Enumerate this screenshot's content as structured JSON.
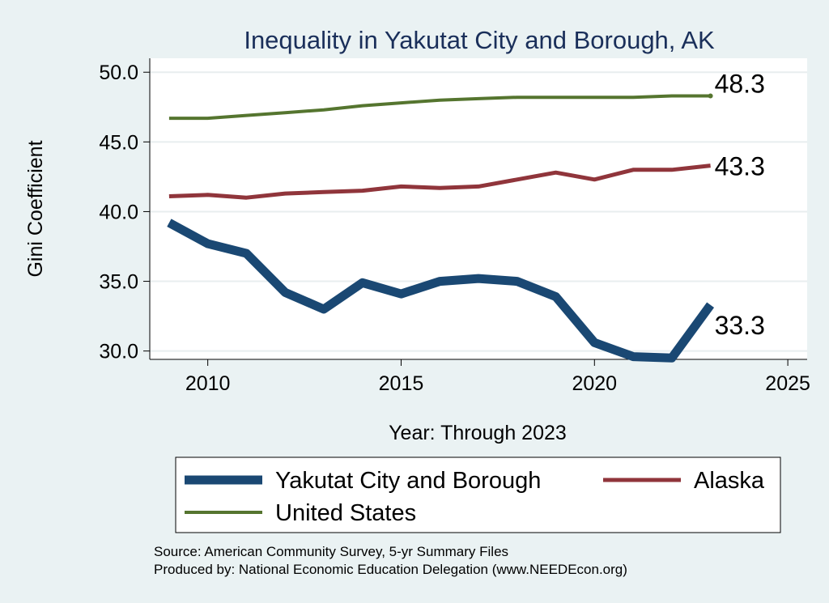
{
  "chart_data": {
    "type": "line",
    "title": "Inequality in Yakutat City and Borough, AK",
    "xlabel": "Year: Through 2023",
    "ylabel": "Gini Coefficient",
    "xlim": [
      2008.5,
      2025.5
    ],
    "ylim": [
      29.4,
      51.0
    ],
    "xticks": [
      2010,
      2015,
      2020,
      2025
    ],
    "yticks": [
      30.0,
      35.0,
      40.0,
      45.0,
      50.0
    ],
    "ytick_labels": [
      "30.0",
      "35.0",
      "40.0",
      "45.0",
      "50.0"
    ],
    "grid": true,
    "legend_position": "bottom",
    "x": [
      2009,
      2010,
      2011,
      2012,
      2013,
      2014,
      2015,
      2016,
      2017,
      2018,
      2019,
      2020,
      2021,
      2022,
      2023
    ],
    "series": [
      {
        "name": "Yakutat City and Borough",
        "color": "#1a4873",
        "values": [
          39.2,
          37.7,
          37.0,
          34.2,
          33.0,
          34.9,
          34.1,
          35.0,
          35.2,
          35.0,
          33.9,
          30.6,
          29.6,
          29.5,
          33.3
        ],
        "end_label": "33.3"
      },
      {
        "name": "Alaska",
        "color": "#90353b",
        "values": [
          41.1,
          41.2,
          41.0,
          41.3,
          41.4,
          41.5,
          41.8,
          41.7,
          41.8,
          42.3,
          42.8,
          42.3,
          43.0,
          43.0,
          43.3
        ],
        "end_label": "43.3"
      },
      {
        "name": "United States",
        "color": "#55752f",
        "values": [
          46.7,
          46.7,
          46.9,
          47.1,
          47.3,
          47.6,
          47.8,
          48.0,
          48.1,
          48.2,
          48.2,
          48.2,
          48.2,
          48.3,
          48.3
        ],
        "end_label": "48.3"
      }
    ]
  },
  "notes": {
    "source": "Source: American Community Survey, 5-yr Summary Files",
    "produced_by": "Produced by: National Economic Education Delegation (www.NEEDEcon.org)"
  }
}
